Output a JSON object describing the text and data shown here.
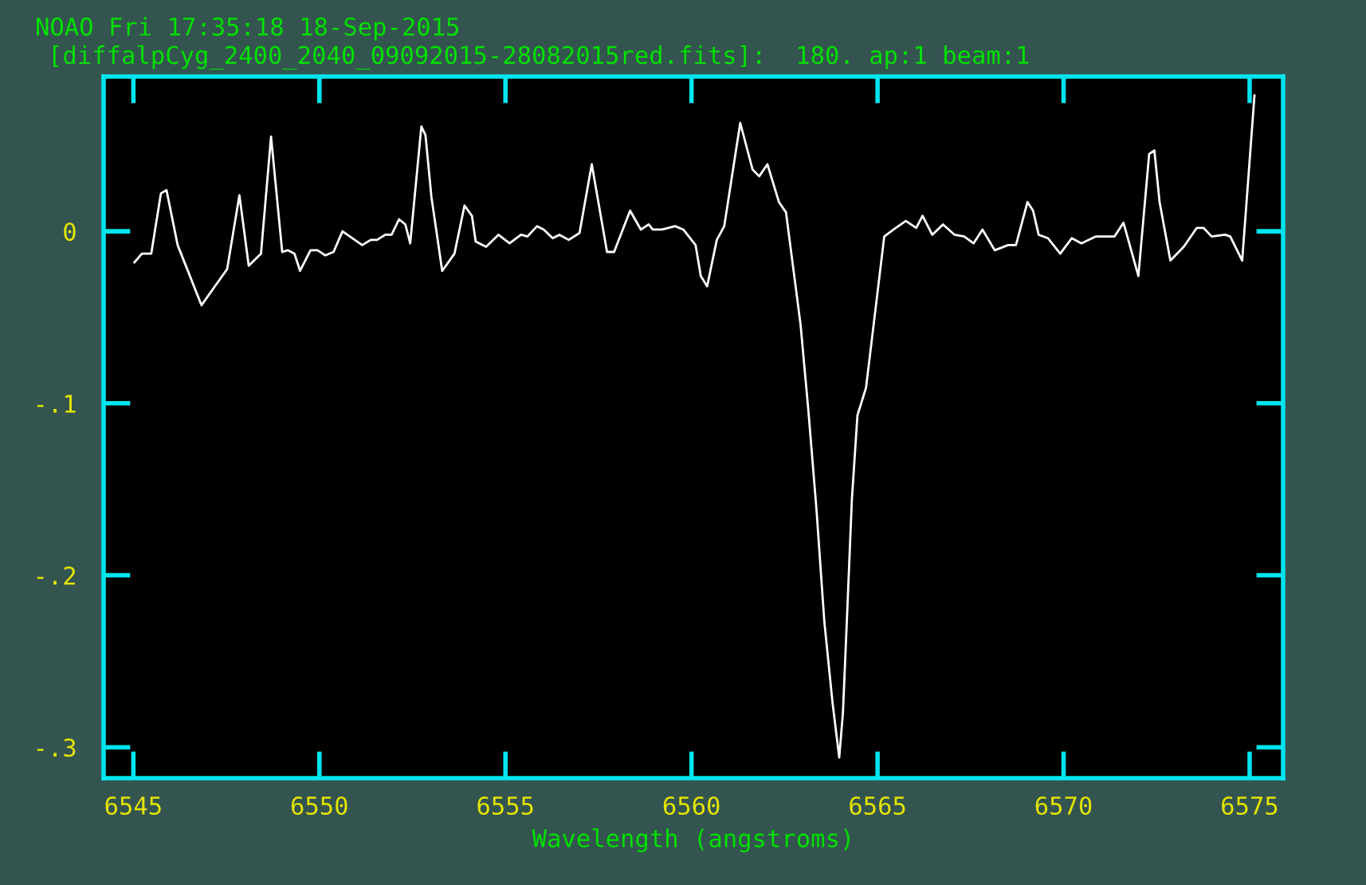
{
  "chart_data": {
    "type": "line",
    "title": "NOAO Fri 17:35:18 18-Sep-2015",
    "subtitle": "[diffalpCyg_2400_2040_09092015-28082015red.fits]:  180. ap:1 beam:1",
    "xlabel": "Wavelength (angstroms)",
    "xlim": [
      6544.2,
      6575.9
    ],
    "ylim": [
      -0.318,
      0.09
    ],
    "xticks": [
      6545,
      6550,
      6555,
      6560,
      6565,
      6570,
      6575
    ],
    "yticks": [
      {
        "value": 0,
        "label": "0"
      },
      {
        "value": -0.1,
        "label": "-.1"
      },
      {
        "value": -0.2,
        "label": "-.2"
      },
      {
        "value": -0.3,
        "label": "-.3"
      }
    ],
    "grid": false,
    "marker": "none",
    "line_style": "solid",
    "series": [
      {
        "color": "#ffffff",
        "x": [
          6545.03,
          6545.23,
          6545.48,
          6545.74,
          6545.89,
          6546.19,
          6546.83,
          6547.52,
          6547.85,
          6548.1,
          6548.43,
          6548.7,
          6549.0,
          6549.15,
          6549.33,
          6549.48,
          6549.76,
          6549.95,
          6550.16,
          6550.38,
          6550.62,
          6551.15,
          6551.38,
          6551.55,
          6551.77,
          6551.94,
          6552.14,
          6552.31,
          6552.44,
          6552.74,
          6552.85,
          6553.01,
          6553.3,
          6553.63,
          6553.9,
          6554.1,
          6554.2,
          6554.48,
          6554.81,
          6555.11,
          6555.42,
          6555.59,
          6555.85,
          6556.03,
          6556.27,
          6556.45,
          6556.7,
          6556.99,
          6557.32,
          6557.73,
          6557.92,
          6558.35,
          6558.64,
          6558.85,
          6558.96,
          6559.21,
          6559.56,
          6559.78,
          6560.11,
          6560.25,
          6560.42,
          6560.68,
          6560.88,
          6561.31,
          6561.64,
          6561.82,
          6562.04,
          6562.35,
          6562.54,
          6562.93,
          6563.14,
          6563.36,
          6563.57,
          6563.79,
          6563.97,
          6564.07,
          6564.18,
          6564.31,
          6564.46,
          6564.69,
          6564.88,
          6565.18,
          6565.43,
          6565.76,
          6566.04,
          6566.21,
          6566.47,
          6566.76,
          6567.07,
          6567.33,
          6567.58,
          6567.82,
          6568.15,
          6568.51,
          6568.72,
          6569.03,
          6569.18,
          6569.33,
          6569.58,
          6569.91,
          6570.22,
          6570.48,
          6570.87,
          6571.37,
          6571.61,
          6572.01,
          6572.3,
          6572.44,
          6572.58,
          6572.87,
          6573.23,
          6573.58,
          6573.76,
          6573.98,
          6574.34,
          6574.48,
          6574.8,
          6575.13
        ],
        "values": [
          -0.018,
          -0.013,
          -0.013,
          0.022,
          0.024,
          -0.008,
          -0.043,
          -0.022,
          0.021,
          -0.02,
          -0.013,
          0.055,
          -0.012,
          -0.011,
          -0.013,
          -0.023,
          -0.011,
          -0.011,
          -0.014,
          -0.012,
          0.0,
          -0.008,
          -0.005,
          -0.005,
          -0.002,
          -0.002,
          0.007,
          0.004,
          -0.007,
          0.061,
          0.056,
          0.02,
          -0.023,
          -0.013,
          0.015,
          0.009,
          -0.006,
          -0.009,
          -0.002,
          -0.007,
          -0.002,
          -0.003,
          0.003,
          0.001,
          -0.004,
          -0.002,
          -0.005,
          -0.001,
          0.039,
          -0.012,
          -0.012,
          0.012,
          0.001,
          0.004,
          0.001,
          0.001,
          0.003,
          0.001,
          -0.008,
          -0.026,
          -0.032,
          -0.005,
          0.003,
          0.063,
          0.036,
          0.032,
          0.039,
          0.017,
          0.011,
          -0.054,
          -0.104,
          -0.162,
          -0.227,
          -0.274,
          -0.306,
          -0.28,
          -0.224,
          -0.156,
          -0.107,
          -0.091,
          -0.057,
          -0.003,
          0.001,
          0.006,
          0.002,
          0.009,
          -0.002,
          0.004,
          -0.002,
          -0.003,
          -0.007,
          0.001,
          -0.011,
          -0.008,
          -0.008,
          0.017,
          0.012,
          -0.002,
          -0.004,
          -0.013,
          -0.004,
          -0.007,
          -0.003,
          -0.003,
          0.005,
          -0.026,
          0.045,
          0.047,
          0.017,
          -0.017,
          -0.009,
          0.002,
          0.002,
          -0.003,
          -0.002,
          -0.003,
          -0.017,
          0.079
        ]
      }
    ]
  }
}
